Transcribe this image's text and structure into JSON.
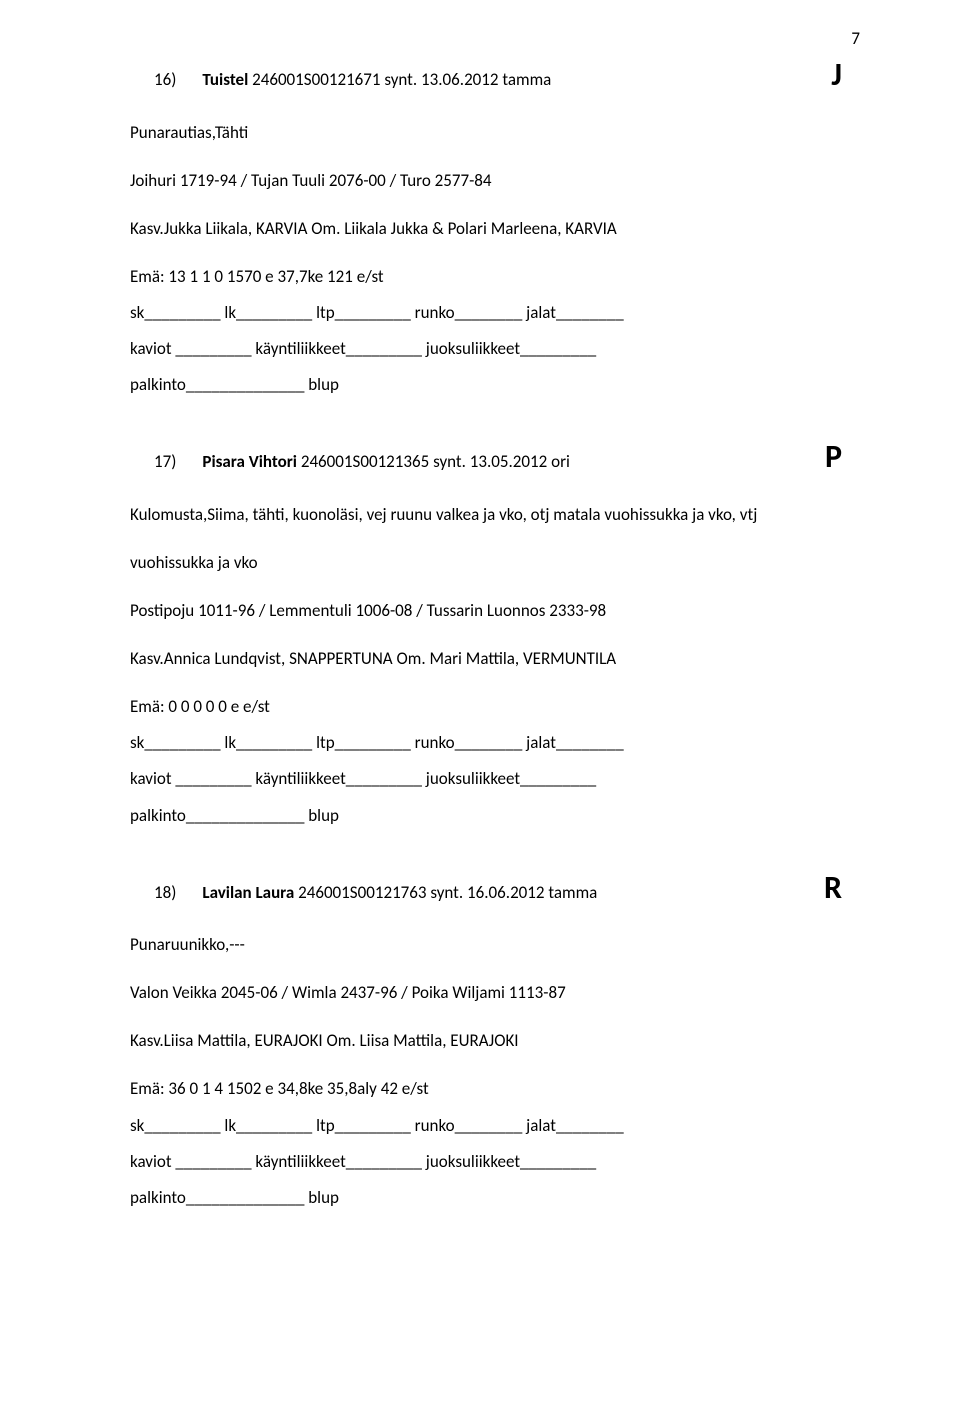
{
  "page_number": "7",
  "entries": [
    {
      "num": "16)",
      "title": "Tuistel",
      "reg": "246001S00121671 synt. 13.06.2012 tamma",
      "letter": "J",
      "desc": "Punarautias,Tähti",
      "pedigree": "Joihuri 1719-94 / Tujan Tuuli 2076-00 / Turo 2577-84",
      "owner": "Kasv.Jukka Liikala, KARVIA Om. Liikala Jukka & Polari Marleena, KARVIA",
      "dam": "Emä: 13 1 1 0 1570 e 37,7ke 121 e/st",
      "line1": "sk_________ lk_________ ltp_________ runko________ jalat________",
      "line2": "kaviot _________ käyntiliikkeet_________ juoksuliikkeet_________",
      "line3": "palkinto______________ blup"
    },
    {
      "num": "17)",
      "title": "Pisara Vihtori",
      "reg": "246001S00121365 synt. 13.05.2012 ori",
      "letter": "P",
      "desc": "Kulomusta,Siima, tähti, kuonoläsi, vej ruunu valkea ja vko, otj matala vuohissukka ja vko, vtj",
      "desc2": "vuohissukka ja vko",
      "pedigree": "Postipoju 1011-96 / Lemmentuli 1006-08 / Tussarin Luonnos 2333-98",
      "owner": "Kasv.Annica Lundqvist, SNAPPERTUNA Om. Mari Mattila, VERMUNTILA",
      "dam": "Emä: 0 0 0 0 0 e e/st",
      "line1": "sk_________ lk_________ ltp_________ runko________ jalat________",
      "line2": "kaviot _________ käyntiliikkeet_________ juoksuliikkeet_________",
      "line3": "palkinto______________ blup"
    },
    {
      "num": "18)",
      "title": "Lavilan Laura",
      "reg": "246001S00121763 synt. 16.06.2012 tamma",
      "letter": "R",
      "desc": "Punaruunikko,---",
      "pedigree": "Valon Veikka 2045-06 / Wimla 2437-96 / Poika Wiljami 1113-87",
      "owner": "Kasv.Liisa Mattila, EURAJOKI Om. Liisa Mattila, EURAJOKI",
      "dam": "Emä: 36 0 1 4 1502 e 34,8ke 35,8aly 42 e/st",
      "line1": "sk_________ lk_________ ltp_________ runko________ jalat________",
      "line2": "kaviot _________ käyntiliikkeet_________ juoksuliikkeet_________",
      "line3": "palkinto______________ blup"
    }
  ]
}
